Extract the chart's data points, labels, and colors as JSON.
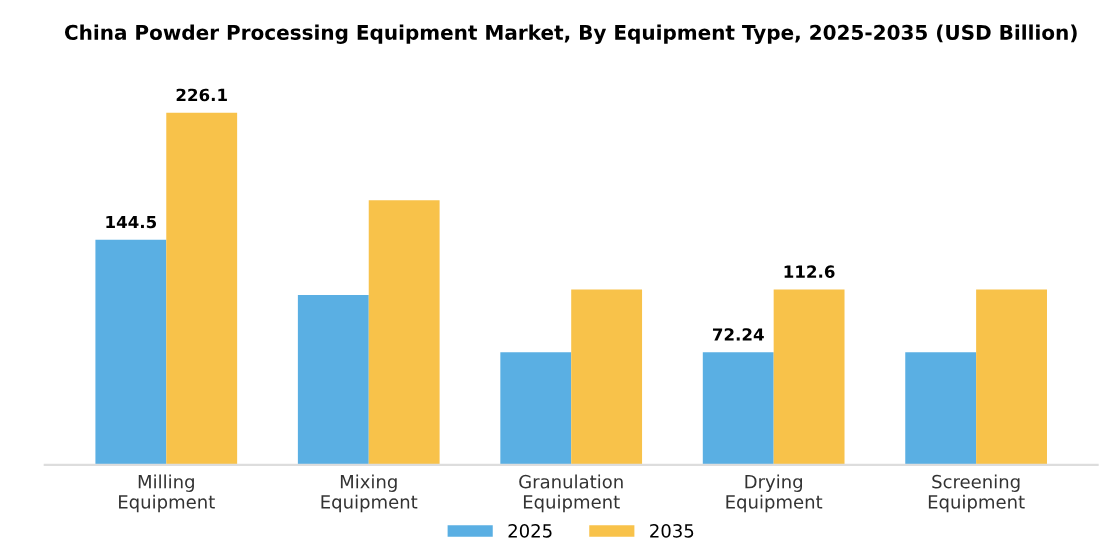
{
  "chart_data": {
    "type": "bar",
    "title": "China Powder Processing Equipment Market, By Equipment Type, 2025-2035 (USD Billion)",
    "categories": [
      "Milling Equipment",
      "Mixing Equipment",
      "Granulation Equipment",
      "Drying Equipment",
      "Screening Equipment"
    ],
    "series": [
      {
        "name": "2025",
        "color": "#5aafe3",
        "values": [
          144.5,
          109,
          72.24,
          72.24,
          72.24
        ],
        "value_labels": [
          "144.5",
          null,
          null,
          "72.24",
          null
        ]
      },
      {
        "name": "2035",
        "color": "#f8c24a",
        "values": [
          226.1,
          170,
          112.6,
          112.6,
          112.6
        ],
        "value_labels": [
          "226.1",
          null,
          null,
          "112.6",
          null
        ]
      }
    ],
    "grid": false,
    "legend": "bottom"
  }
}
